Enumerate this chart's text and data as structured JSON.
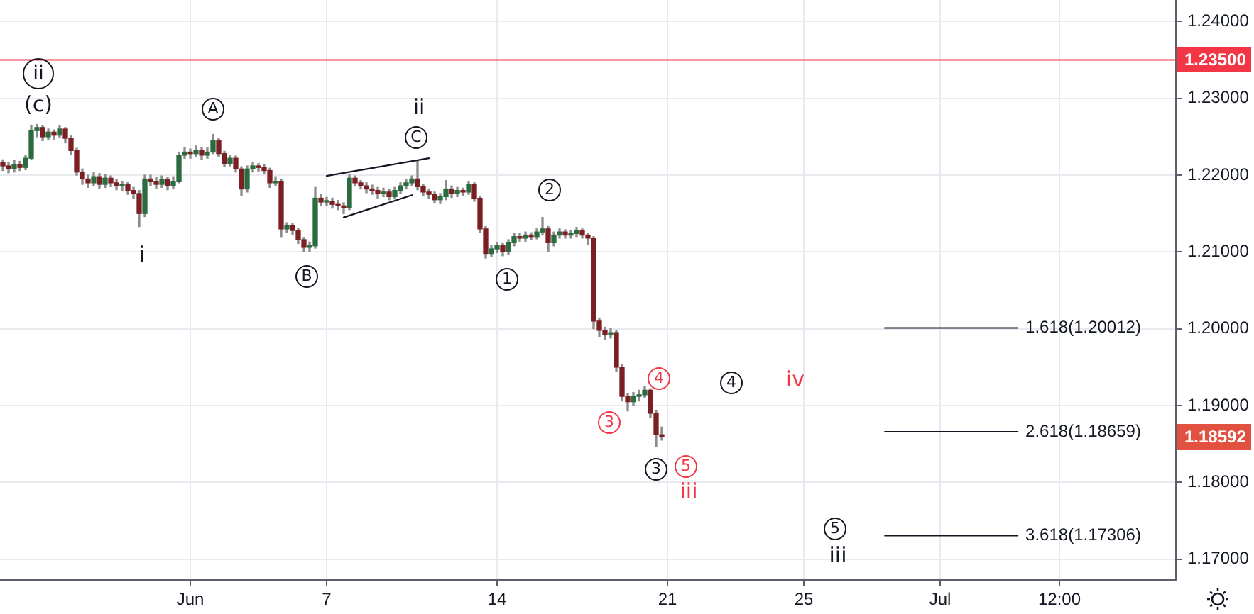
{
  "chart_data": {
    "type": "candlestick",
    "categories": [
      null,
      null,
      null,
      null,
      null,
      null,
      null,
      null,
      null,
      null,
      null,
      null,
      null,
      null,
      null,
      null,
      null,
      null,
      null,
      null,
      null,
      null,
      null,
      null,
      null,
      null,
      null,
      null,
      null,
      null,
      null,
      null,
      null,
      "Jun",
      null,
      null,
      null,
      null,
      null,
      null,
      null,
      null,
      null,
      null,
      null,
      null,
      null,
      null,
      null,
      null,
      null,
      null,
      null,
      null,
      null,
      null,
      null,
      "7",
      null,
      null,
      null,
      null,
      null,
      null,
      null,
      null,
      null,
      null,
      null,
      null,
      null,
      null,
      null,
      null,
      null,
      null,
      null,
      null,
      null,
      null,
      null,
      null,
      null,
      null,
      null,
      null,
      null,
      "14",
      null,
      null,
      null,
      null,
      null,
      null,
      null,
      null,
      null,
      null,
      null,
      null,
      null,
      null,
      null,
      null,
      null,
      null,
      null,
      null,
      null,
      null,
      null,
      null,
      null,
      null,
      null,
      null,
      null,
      "21",
      null,
      null,
      null,
      null,
      null,
      null,
      null,
      null,
      null,
      null,
      null,
      null,
      null,
      null,
      null,
      null,
      null,
      null,
      null,
      null,
      null,
      null,
      null,
      "25",
      null,
      null,
      null,
      null,
      null,
      null,
      null,
      null,
      null,
      null,
      null,
      null,
      null,
      null,
      null,
      null,
      null,
      null,
      null,
      null,
      null,
      null,
      null,
      "Jul",
      null,
      null,
      null,
      null,
      null,
      null,
      null,
      null,
      null,
      null,
      null,
      null,
      null,
      null,
      null,
      null,
      null,
      null,
      null,
      null,
      "12:00",
      null,
      null,
      null,
      null,
      null,
      null,
      null,
      null,
      null,
      null,
      null,
      null,
      null,
      null,
      null,
      null,
      null,
      null,
      null,
      null
    ],
    "ohlc": [
      [
        1.2216,
        1.222,
        1.2206,
        1.2212
      ],
      [
        1.2212,
        1.2216,
        1.2203,
        1.2208
      ],
      [
        1.2208,
        1.2219,
        1.2204,
        1.2214
      ],
      [
        1.2214,
        1.2218,
        1.2206,
        1.221
      ],
      [
        1.221,
        1.2226,
        1.2207,
        1.2222
      ],
      [
        1.2222,
        1.2265,
        1.222,
        1.2258
      ],
      [
        1.2258,
        1.2266,
        1.225,
        1.2262
      ],
      [
        1.2262,
        1.2264,
        1.2245,
        1.225
      ],
      [
        1.225,
        1.226,
        1.2246,
        1.2256
      ],
      [
        1.2256,
        1.2259,
        1.2247,
        1.2252
      ],
      [
        1.2252,
        1.2264,
        1.2249,
        1.226
      ],
      [
        1.226,
        1.2262,
        1.2242,
        1.2248
      ],
      [
        1.2248,
        1.2251,
        1.2227,
        1.2232
      ],
      [
        1.2232,
        1.2235,
        1.22,
        1.2204
      ],
      [
        1.2204,
        1.2208,
        1.2188,
        1.2195
      ],
      [
        1.2195,
        1.22,
        1.2184,
        1.219
      ],
      [
        1.219,
        1.2204,
        1.2186,
        1.2198
      ],
      [
        1.2198,
        1.2202,
        1.2183,
        1.2188
      ],
      [
        1.2188,
        1.2201,
        1.2184,
        1.2196
      ],
      [
        1.2196,
        1.2199,
        1.2185,
        1.219
      ],
      [
        1.219,
        1.2194,
        1.2181,
        1.2186
      ],
      [
        1.2186,
        1.2192,
        1.218,
        1.2188
      ],
      [
        1.2188,
        1.2191,
        1.2175,
        1.218
      ],
      [
        1.218,
        1.2184,
        1.217,
        1.2176
      ],
      [
        1.2176,
        1.218,
        1.2133,
        1.215
      ],
      [
        1.215,
        1.22,
        1.2146,
        1.2195
      ],
      [
        1.2195,
        1.22,
        1.2186,
        1.2192
      ],
      [
        1.2192,
        1.2197,
        1.2183,
        1.2188
      ],
      [
        1.2188,
        1.2199,
        1.2184,
        1.2194
      ],
      [
        1.2194,
        1.2197,
        1.2181,
        1.2186
      ],
      [
        1.2186,
        1.2198,
        1.2182,
        1.2192
      ],
      [
        1.2192,
        1.223,
        1.219,
        1.2226
      ],
      [
        1.2226,
        1.2236,
        1.2222,
        1.223
      ],
      [
        1.223,
        1.2234,
        1.2222,
        1.2228
      ],
      [
        1.2228,
        1.2238,
        1.2224,
        1.2232
      ],
      [
        1.2232,
        1.2236,
        1.222,
        1.2226
      ],
      [
        1.2226,
        1.2236,
        1.2222,
        1.223
      ],
      [
        1.223,
        1.2253,
        1.2228,
        1.2245
      ],
      [
        1.2245,
        1.2248,
        1.2224,
        1.2228
      ],
      [
        1.2228,
        1.2231,
        1.2211,
        1.2215
      ],
      [
        1.2215,
        1.2226,
        1.2212,
        1.2222
      ],
      [
        1.2222,
        1.2225,
        1.2204,
        1.2208
      ],
      [
        1.2208,
        1.2211,
        1.2173,
        1.2182
      ],
      [
        1.2182,
        1.2212,
        1.2178,
        1.2208
      ],
      [
        1.2208,
        1.2216,
        1.2204,
        1.2212
      ],
      [
        1.2212,
        1.2215,
        1.2205,
        1.221
      ],
      [
        1.221,
        1.2214,
        1.2202,
        1.2206
      ],
      [
        1.2206,
        1.2209,
        1.2184,
        1.219
      ],
      [
        1.219,
        1.2198,
        1.2186,
        1.2192
      ],
      [
        1.2192,
        1.2195,
        1.212,
        1.213
      ],
      [
        1.213,
        1.2138,
        1.2125,
        1.2134
      ],
      [
        1.2134,
        1.2137,
        1.2123,
        1.2128
      ],
      [
        1.2128,
        1.2131,
        1.2111,
        1.2116
      ],
      [
        1.2116,
        1.2119,
        1.21,
        1.2106
      ],
      [
        1.2106,
        1.2113,
        1.2101,
        1.2108
      ],
      [
        1.2108,
        1.2184,
        1.2105,
        1.217
      ],
      [
        1.217,
        1.2175,
        1.216,
        1.2165
      ],
      [
        1.2165,
        1.2171,
        1.216,
        1.2166
      ],
      [
        1.2166,
        1.217,
        1.2157,
        1.2162
      ],
      [
        1.2162,
        1.2167,
        1.2155,
        1.216
      ],
      [
        1.216,
        1.2164,
        1.215,
        1.2158
      ],
      [
        1.2158,
        1.2201,
        1.2155,
        1.2196
      ],
      [
        1.2196,
        1.2199,
        1.2186,
        1.219
      ],
      [
        1.219,
        1.2193,
        1.2182,
        1.2186
      ],
      [
        1.2186,
        1.219,
        1.2177,
        1.2182
      ],
      [
        1.2182,
        1.2187,
        1.2175,
        1.218
      ],
      [
        1.218,
        1.2184,
        1.217,
        1.2176
      ],
      [
        1.2176,
        1.2183,
        1.2172,
        1.2178
      ],
      [
        1.2178,
        1.2181,
        1.2168,
        1.2172
      ],
      [
        1.2172,
        1.2184,
        1.2169,
        1.218
      ],
      [
        1.218,
        1.219,
        1.2176,
        1.2186
      ],
      [
        1.2186,
        1.2194,
        1.2182,
        1.219
      ],
      [
        1.219,
        1.2199,
        1.2186,
        1.2195
      ],
      [
        1.2195,
        1.2219,
        1.2181,
        1.2185
      ],
      [
        1.2185,
        1.2188,
        1.2173,
        1.2178
      ],
      [
        1.2178,
        1.2182,
        1.217,
        1.2175
      ],
      [
        1.2175,
        1.2178,
        1.2164,
        1.2168
      ],
      [
        1.2168,
        1.2176,
        1.2163,
        1.2172
      ],
      [
        1.2172,
        1.2193,
        1.2168,
        1.2182
      ],
      [
        1.2182,
        1.2186,
        1.2171,
        1.2176
      ],
      [
        1.2176,
        1.2184,
        1.2172,
        1.218
      ],
      [
        1.218,
        1.2183,
        1.2173,
        1.2178
      ],
      [
        1.2178,
        1.2192,
        1.2175,
        1.2188
      ],
      [
        1.2188,
        1.219,
        1.2166,
        1.217
      ],
      [
        1.217,
        1.2172,
        1.2125,
        1.213
      ],
      [
        1.213,
        1.2133,
        1.2092,
        1.2098
      ],
      [
        1.2098,
        1.2108,
        1.2094,
        1.2104
      ],
      [
        1.2104,
        1.2112,
        1.2099,
        1.2108
      ],
      [
        1.2108,
        1.2111,
        1.2095,
        1.21
      ],
      [
        1.21,
        1.2116,
        1.2097,
        1.2112
      ],
      [
        1.2112,
        1.2124,
        1.2108,
        1.212
      ],
      [
        1.212,
        1.2124,
        1.2114,
        1.2118
      ],
      [
        1.2118,
        1.2126,
        1.2114,
        1.2122
      ],
      [
        1.2122,
        1.2125,
        1.2116,
        1.212
      ],
      [
        1.212,
        1.213,
        1.2117,
        1.2126
      ],
      [
        1.2126,
        1.2145,
        1.2122,
        1.213
      ],
      [
        1.213,
        1.2133,
        1.2101,
        1.2112
      ],
      [
        1.2112,
        1.2126,
        1.2108,
        1.2122
      ],
      [
        1.2122,
        1.213,
        1.2118,
        1.2126
      ],
      [
        1.2126,
        1.2129,
        1.2118,
        1.2122
      ],
      [
        1.2122,
        1.2128,
        1.2118,
        1.2124
      ],
      [
        1.2124,
        1.2132,
        1.212,
        1.2128
      ],
      [
        1.2128,
        1.213,
        1.2118,
        1.2122
      ],
      [
        1.2122,
        1.2124,
        1.211,
        1.2118
      ],
      [
        1.2118,
        1.212,
        1.2,
        1.201
      ],
      [
        1.201,
        1.2014,
        1.199,
        1.1998
      ],
      [
        1.1998,
        1.2002,
        1.1986,
        1.1992
      ],
      [
        1.1992,
        1.2001,
        1.1988,
        1.1995
      ],
      [
        1.1995,
        1.1998,
        1.1945,
        1.195
      ],
      [
        1.195,
        1.1954,
        1.1906,
        1.1912
      ],
      [
        1.1912,
        1.1916,
        1.1893,
        1.1905
      ],
      [
        1.1905,
        1.1917,
        1.19,
        1.1912
      ],
      [
        1.1912,
        1.192,
        1.1906,
        1.1914
      ],
      [
        1.1914,
        1.1925,
        1.191,
        1.192
      ],
      [
        1.192,
        1.1922,
        1.1884,
        1.189
      ],
      [
        1.189,
        1.1894,
        1.1847,
        1.1862
      ],
      [
        1.1862,
        1.1872,
        1.1855,
        1.18592
      ],
      null,
      null,
      null,
      null,
      null,
      null,
      null,
      null,
      null,
      null,
      null,
      null,
      null,
      null,
      null,
      null,
      null,
      null,
      null,
      null,
      null,
      null,
      null,
      null,
      null,
      null,
      null,
      null,
      null,
      null,
      null,
      null,
      null,
      null,
      null,
      null,
      null,
      null,
      null,
      null,
      null,
      null,
      null,
      null,
      null,
      null,
      null,
      null,
      null,
      null,
      null,
      null,
      null,
      null,
      null,
      null,
      null,
      null,
      null,
      null,
      null,
      null,
      null,
      null,
      null,
      null,
      null,
      null,
      null,
      null,
      null,
      null,
      null,
      null,
      null,
      null,
      null,
      null,
      null,
      null,
      null,
      null,
      null,
      null,
      null,
      null,
      null,
      null,
      null,
      null
    ],
    "series": [
      {
        "type": "line",
        "color": "#131722",
        "values": [
          null,
          null,
          null,
          null,
          null,
          null,
          null,
          null,
          null,
          null,
          null,
          null,
          null,
          null,
          null,
          null,
          null,
          null,
          null,
          null,
          null,
          null,
          null,
          null,
          null,
          null,
          null,
          null,
          null,
          null,
          null,
          null,
          null,
          null,
          null,
          null,
          null,
          null,
          null,
          null,
          null,
          null,
          null,
          null,
          null,
          null,
          null,
          null,
          null,
          null,
          null,
          null,
          null,
          null,
          null,
          null,
          null,
          1.2199,
          null,
          null,
          null,
          null,
          null,
          null,
          null,
          null,
          null,
          null,
          null,
          null,
          null,
          null,
          null,
          null,
          null,
          1.2222,
          null,
          null,
          null,
          null,
          null,
          null,
          null,
          null,
          null,
          null,
          null,
          null,
          null,
          null,
          null,
          null,
          null,
          null,
          null,
          null,
          null,
          null,
          null,
          null,
          null,
          null,
          null,
          null,
          null,
          null,
          null,
          null,
          null,
          null,
          null,
          null,
          null,
          null,
          null,
          null,
          null,
          null,
          null,
          null,
          null,
          null,
          null,
          null,
          null,
          null,
          null,
          null,
          null,
          null,
          null,
          null,
          null,
          null,
          null,
          null,
          null,
          null,
          null,
          null,
          null,
          null,
          null,
          null,
          null,
          null,
          null,
          null,
          null,
          null,
          null,
          null,
          null,
          null,
          null,
          null,
          null,
          null,
          null,
          null,
          null,
          null,
          null,
          null,
          null,
          null,
          null,
          null,
          null,
          null,
          null,
          null,
          null,
          null,
          null,
          null,
          null,
          null,
          null,
          null,
          null,
          null,
          null,
          null,
          null,
          null,
          null,
          null,
          null,
          null,
          null,
          null,
          null,
          null,
          null,
          null,
          null,
          null,
          null,
          null,
          null,
          null,
          null,
          null,
          null,
          null,
          null
        ]
      },
      {
        "type": "line",
        "color": "#131722",
        "values": [
          null,
          null,
          null,
          null,
          null,
          null,
          null,
          null,
          null,
          null,
          null,
          null,
          null,
          null,
          null,
          null,
          null,
          null,
          null,
          null,
          null,
          null,
          null,
          null,
          null,
          null,
          null,
          null,
          null,
          null,
          null,
          null,
          null,
          null,
          null,
          null,
          null,
          null,
          null,
          null,
          null,
          null,
          null,
          null,
          null,
          null,
          null,
          null,
          null,
          null,
          null,
          null,
          null,
          null,
          null,
          null,
          null,
          null,
          null,
          null,
          1.2145,
          null,
          null,
          null,
          null,
          null,
          null,
          null,
          null,
          null,
          null,
          null,
          1.2174,
          null,
          null,
          null,
          null,
          null,
          null,
          null,
          null,
          null,
          null,
          null,
          null,
          null,
          null,
          null,
          null,
          null,
          null,
          null,
          null,
          null,
          null,
          null,
          null,
          null,
          null,
          null,
          null,
          null,
          null,
          null,
          null,
          null,
          null,
          null,
          null,
          null,
          null,
          null,
          null,
          null,
          null,
          null,
          null,
          null,
          null,
          null,
          null,
          null,
          null,
          null,
          null,
          null,
          null,
          null,
          null,
          null,
          null,
          null,
          null,
          null,
          null,
          null,
          null,
          null,
          null,
          null,
          null,
          null,
          null,
          null,
          null,
          null,
          null,
          null,
          null,
          null,
          null,
          null,
          null,
          null,
          null,
          null,
          null,
          null,
          null,
          null,
          null,
          null,
          null,
          null,
          null,
          null,
          null,
          null,
          null,
          null,
          null,
          null,
          null,
          null,
          null,
          null,
          null,
          null,
          null,
          null,
          null,
          null,
          null,
          null,
          null,
          null,
          null,
          null,
          null,
          null,
          null,
          null,
          null,
          null,
          null,
          null,
          null,
          null,
          null,
          null,
          null,
          null,
          null,
          null,
          null,
          null,
          null
        ]
      }
    ],
    "ylim": [
      1.1673,
      1.2428
    ],
    "yticks": [
      {
        "value": 1.17,
        "label": "1.17000"
      },
      {
        "value": 1.18,
        "label": "1.18000"
      },
      {
        "value": 1.19,
        "label": "1.19000"
      },
      {
        "value": 1.2,
        "label": "1.20000"
      },
      {
        "value": 1.21,
        "label": "1.21000"
      },
      {
        "value": 1.22,
        "label": "1.22000"
      },
      {
        "value": 1.23,
        "label": "1.23000"
      },
      {
        "value": 1.24,
        "label": "1.24000"
      }
    ],
    "grid": true,
    "ref_lines": [
      {
        "axis": "y",
        "value": 1.235,
        "color": "#f23645"
      },
      {
        "axis": "y",
        "value": 1.20012,
        "label": "1.618(1.20012)",
        "color": "#131722"
      },
      {
        "axis": "y",
        "value": 1.18659,
        "label": "2.618(1.18659)",
        "color": "#131722"
      },
      {
        "axis": "y",
        "value": 1.17306,
        "label": "3.618(1.17306)",
        "color": "#131722"
      }
    ],
    "annotations": [
      "ii",
      "(c)",
      "A",
      "ii",
      "C",
      "i",
      "B",
      "2",
      "1",
      "4",
      "4",
      "iv",
      "3",
      "3",
      "5",
      "iii",
      "5",
      "iii",
      "1.23500",
      "1.18592"
    ]
  }
}
